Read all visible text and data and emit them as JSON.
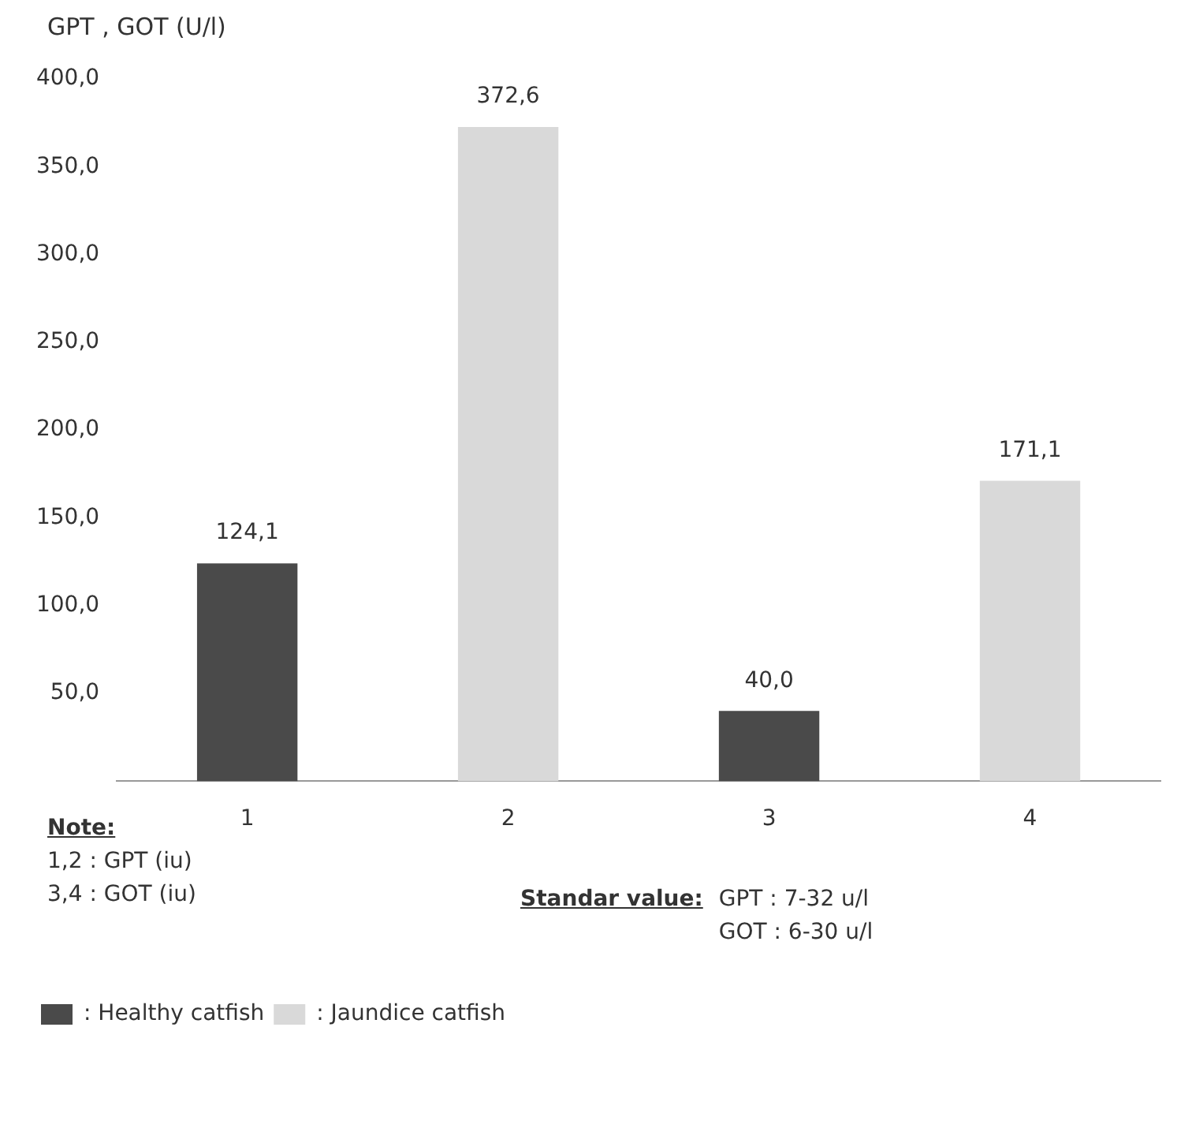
{
  "chart_data": {
    "type": "bar",
    "ylabel": "GPT , GOT (U/l)",
    "categories": [
      "1",
      "2",
      "3",
      "4"
    ],
    "series": [
      {
        "name": ": Healthy catfish",
        "color": "#4a4a4a",
        "values": [
          124.1,
          null,
          40.0,
          null
        ],
        "value_labels": [
          "124,1",
          null,
          "40,0",
          null
        ]
      },
      {
        "name": ": Jaundice catfish",
        "color": "#d9d9d9",
        "values": [
          null,
          372.6,
          null,
          171.1
        ],
        "value_labels": [
          null,
          "372,6",
          null,
          "171,1"
        ]
      }
    ],
    "ylim": [
      0,
      400
    ],
    "yticks": [
      {
        "value": 0,
        "label": null
      },
      {
        "value": 50,
        "label": "50,0"
      },
      {
        "value": 100,
        "label": "100,0"
      },
      {
        "value": 150,
        "label": "150,0"
      },
      {
        "value": 200,
        "label": "200,0"
      },
      {
        "value": 250,
        "label": "250,0"
      },
      {
        "value": 300,
        "label": "300,0"
      },
      {
        "value": 350,
        "label": "350,0"
      },
      {
        "value": 400,
        "label": "400,0"
      }
    ],
    "grid": false,
    "legend": "bottom left",
    "annotations": [
      "Note:",
      "1,2 : GPT (iu)",
      "3,4 :  GOT (iu)",
      "Standar value:",
      "GPT : 7-32 u/l",
      "GOT : 6-30 u/l"
    ]
  }
}
